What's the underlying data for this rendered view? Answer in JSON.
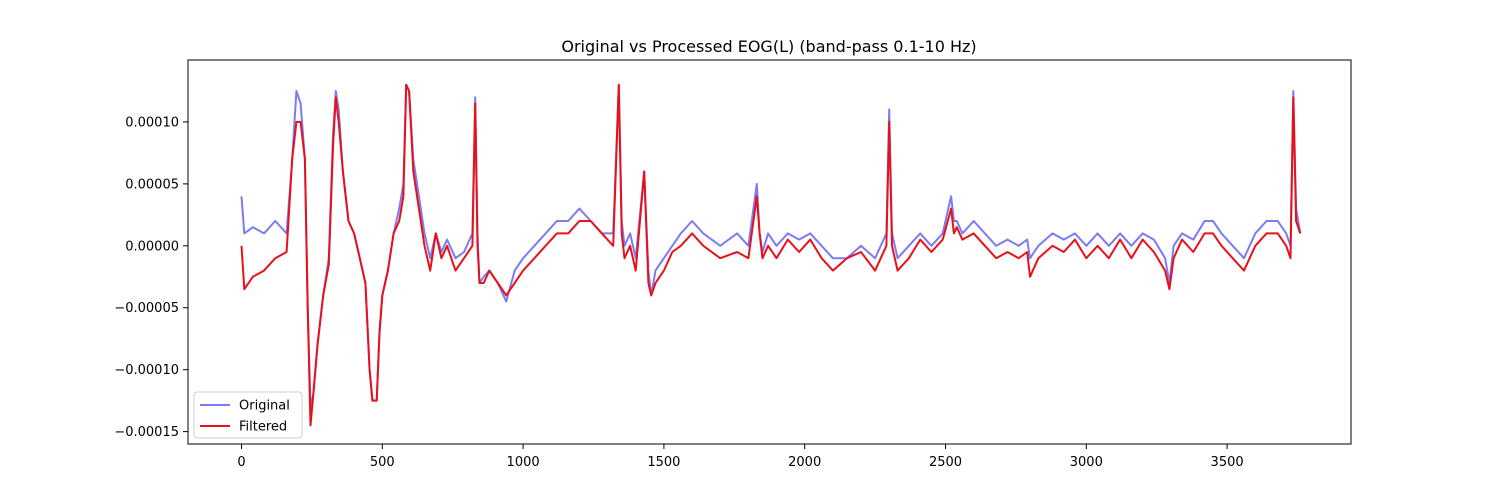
{
  "chart_data": {
    "type": "line",
    "title": "Original vs Processed EOG(L) (band-pass 0.1-10 Hz)",
    "xlabel": "",
    "ylabel": "",
    "xlim": [
      -190,
      3940
    ],
    "ylim": [
      -0.00016,
      0.00015
    ],
    "x_ticks": [
      0,
      500,
      1000,
      1500,
      2000,
      2500,
      3000,
      3500
    ],
    "x_tick_labels": [
      "0",
      "500",
      "1000",
      "1500",
      "2000",
      "2500",
      "3000",
      "3500"
    ],
    "y_ticks": [
      -0.00015,
      -0.0001,
      -5e-05,
      0,
      5e-05,
      0.0001
    ],
    "y_tick_labels": [
      "−0.00015",
      "−0.00010",
      "−0.00005",
      "0.00000",
      "0.00005",
      "0.00010"
    ],
    "grid": false,
    "legend": "lower-left",
    "series": [
      {
        "name": "Original",
        "color": "#7b7bf5",
        "x": [
          0,
          10,
          40,
          80,
          120,
          160,
          180,
          195,
          210,
          225,
          235,
          245,
          255,
          270,
          290,
          310,
          325,
          335,
          345,
          360,
          380,
          400,
          420,
          440,
          455,
          465,
          480,
          490,
          500,
          520,
          540,
          560,
          575,
          585,
          595,
          610,
          630,
          650,
          670,
          690,
          710,
          730,
          760,
          790,
          820,
          830,
          838,
          845,
          860,
          880,
          910,
          940,
          970,
          1000,
          1040,
          1080,
          1120,
          1160,
          1200,
          1240,
          1280,
          1320,
          1340,
          1350,
          1360,
          1380,
          1400,
          1430,
          1445,
          1455,
          1470,
          1500,
          1530,
          1560,
          1600,
          1640,
          1700,
          1760,
          1800,
          1830,
          1840,
          1850,
          1870,
          1900,
          1940,
          1980,
          2020,
          2060,
          2100,
          2150,
          2200,
          2250,
          2290,
          2300,
          2310,
          2330,
          2370,
          2410,
          2450,
          2490,
          2520,
          2530,
          2540,
          2560,
          2600,
          2640,
          2680,
          2720,
          2760,
          2790,
          2800,
          2830,
          2880,
          2920,
          2960,
          3000,
          3040,
          3080,
          3120,
          3160,
          3200,
          3240,
          3280,
          3295,
          3310,
          3340,
          3380,
          3420,
          3450,
          3480,
          3520,
          3560,
          3600,
          3640,
          3680,
          3710,
          3725,
          3735,
          3745,
          3760
        ],
        "values": [
          4e-05,
          1e-05,
          1.5e-05,
          1e-05,
          2e-05,
          1e-05,
          7e-05,
          0.000125,
          0.000115,
          7e-05,
          -5e-05,
          -0.00013,
          -0.00012,
          -8e-05,
          -4e-05,
          -1e-05,
          9e-05,
          0.000125,
          0.00011,
          6e-05,
          2e-05,
          1e-05,
          -1e-05,
          -3e-05,
          -0.0001,
          -0.000125,
          -0.000125,
          -7e-05,
          -4e-05,
          -2e-05,
          1e-05,
          3e-05,
          5e-05,
          0.00013,
          0.000125,
          7e-05,
          4e-05,
          1e-05,
          -1e-05,
          1e-05,
          -5e-06,
          5e-06,
          -1e-05,
          -5e-06,
          1e-05,
          0.00012,
          1e-05,
          -3e-05,
          -2.5e-05,
          -2e-05,
          -3e-05,
          -4.5e-05,
          -2e-05,
          -1e-05,
          0.0,
          1e-05,
          2e-05,
          2e-05,
          3e-05,
          2e-05,
          1e-05,
          1e-05,
          0.00013,
          2e-05,
          0.0,
          1e-05,
          -1e-05,
          6e-05,
          -2e-05,
          -4e-05,
          -2e-05,
          -1e-05,
          0.0,
          1e-05,
          2e-05,
          1e-05,
          0.0,
          1e-05,
          0.0,
          5e-05,
          1e-05,
          -5e-06,
          1e-05,
          0.0,
          1e-05,
          5e-06,
          1e-05,
          0.0,
          -1e-05,
          -1e-05,
          0.0,
          -1e-05,
          1e-05,
          0.00011,
          1e-05,
          -1e-05,
          0.0,
          1e-05,
          0.0,
          1e-05,
          4e-05,
          2e-05,
          2e-05,
          1e-05,
          2e-05,
          1e-05,
          0.0,
          5e-06,
          0.0,
          5e-06,
          -1e-05,
          0.0,
          1e-05,
          5e-06,
          1e-05,
          0.0,
          1e-05,
          0.0,
          1e-05,
          0.0,
          1e-05,
          5e-06,
          -1e-05,
          -3e-05,
          0.0,
          1e-05,
          5e-06,
          2e-05,
          2e-05,
          1e-05,
          0.0,
          -1e-05,
          1e-05,
          2e-05,
          2e-05,
          1e-05,
          0.0,
          0.000125,
          3e-05,
          1e-05
        ]
      },
      {
        "name": "Filtered",
        "color": "#e8111a",
        "x": [
          0,
          10,
          40,
          80,
          120,
          160,
          180,
          195,
          210,
          225,
          235,
          245,
          255,
          270,
          290,
          310,
          325,
          335,
          345,
          360,
          380,
          400,
          420,
          440,
          455,
          465,
          480,
          490,
          500,
          520,
          540,
          560,
          575,
          585,
          595,
          610,
          630,
          650,
          670,
          690,
          710,
          730,
          760,
          790,
          820,
          830,
          838,
          845,
          860,
          880,
          910,
          940,
          970,
          1000,
          1040,
          1080,
          1120,
          1160,
          1200,
          1240,
          1280,
          1320,
          1340,
          1350,
          1360,
          1380,
          1400,
          1430,
          1445,
          1455,
          1470,
          1500,
          1530,
          1560,
          1600,
          1640,
          1700,
          1760,
          1800,
          1830,
          1840,
          1850,
          1870,
          1900,
          1940,
          1980,
          2020,
          2060,
          2100,
          2150,
          2200,
          2250,
          2290,
          2300,
          2310,
          2330,
          2370,
          2410,
          2450,
          2490,
          2520,
          2530,
          2540,
          2560,
          2600,
          2640,
          2680,
          2720,
          2760,
          2790,
          2800,
          2830,
          2880,
          2920,
          2960,
          3000,
          3040,
          3080,
          3120,
          3160,
          3200,
          3240,
          3280,
          3295,
          3310,
          3340,
          3380,
          3420,
          3450,
          3480,
          3520,
          3560,
          3600,
          3640,
          3680,
          3710,
          3725,
          3735,
          3745,
          3760
        ],
        "values": [
          0.0,
          -3.5e-05,
          -2.5e-05,
          -2e-05,
          -1e-05,
          -5e-06,
          7e-05,
          0.0001,
          0.0001,
          7e-05,
          -5e-05,
          -0.000145,
          -0.00012,
          -8e-05,
          -4e-05,
          -1.5e-05,
          8e-05,
          0.00012,
          0.0001,
          6e-05,
          2e-05,
          1e-05,
          -1e-05,
          -3e-05,
          -0.0001,
          -0.000125,
          -0.000125,
          -7e-05,
          -4e-05,
          -2e-05,
          1e-05,
          2e-05,
          4e-05,
          0.00013,
          0.000125,
          6e-05,
          3e-05,
          0.0,
          -2e-05,
          1e-05,
          -1e-05,
          0.0,
          -2e-05,
          -1e-05,
          0.0,
          0.000115,
          0.0,
          -3e-05,
          -3e-05,
          -2e-05,
          -3e-05,
          -4e-05,
          -3e-05,
          -2e-05,
          -1e-05,
          0.0,
          1e-05,
          1e-05,
          2e-05,
          2e-05,
          1e-05,
          0.0,
          0.00013,
          1e-05,
          -1e-05,
          0.0,
          -2e-05,
          6e-05,
          -3e-05,
          -4e-05,
          -3e-05,
          -2e-05,
          -5e-06,
          0.0,
          1e-05,
          0.0,
          -1e-05,
          -5e-06,
          -1e-05,
          4e-05,
          1e-05,
          -1e-05,
          0.0,
          -1e-05,
          5e-06,
          -5e-06,
          5e-06,
          -1e-05,
          -2e-05,
          -1e-05,
          -5e-06,
          -2e-05,
          0.0,
          0.0001,
          0.0,
          -2e-05,
          -1e-05,
          5e-06,
          -5e-06,
          5e-06,
          3e-05,
          1e-05,
          1.5e-05,
          5e-06,
          1e-05,
          0.0,
          -1e-05,
          -5e-06,
          -1e-05,
          -5e-06,
          -2.5e-05,
          -1e-05,
          0.0,
          -5e-06,
          5e-06,
          -1e-05,
          0.0,
          -1e-05,
          5e-06,
          -1e-05,
          5e-06,
          -5e-06,
          -2e-05,
          -3.5e-05,
          -1e-05,
          5e-06,
          -5e-06,
          1e-05,
          1e-05,
          0.0,
          -1e-05,
          -2e-05,
          0.0,
          1e-05,
          1e-05,
          0.0,
          -1e-05,
          0.00012,
          2e-05,
          1e-05
        ]
      }
    ]
  }
}
